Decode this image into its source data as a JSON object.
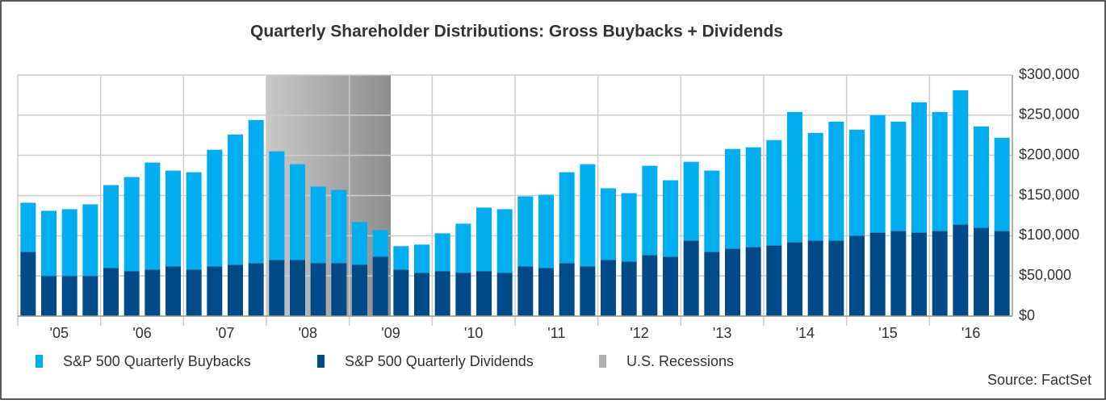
{
  "chart_data": {
    "type": "stacked_bar",
    "title": "Quarterly Shareholder Distributions: Gross Buybacks + Dividends",
    "source": "Source: FactSet",
    "year_labels": [
      "'05",
      "'06",
      "'07",
      "'08",
      "'09",
      "'10",
      "'11",
      "'12",
      "'13",
      "'14",
      "'15",
      "'16"
    ],
    "series": [
      {
        "name": "S&P 500 Quarterly Dividends",
        "color": "#004b87",
        "values": [
          80000,
          50000,
          50000,
          50000,
          60000,
          56000,
          58000,
          62000,
          58000,
          62000,
          64000,
          66000,
          70000,
          70000,
          66000,
          66000,
          64000,
          74000,
          58000,
          54000,
          56000,
          54000,
          56000,
          54000,
          62000,
          60000,
          66000,
          62000,
          70000,
          68000,
          76000,
          74000,
          94000,
          80000,
          84000,
          86000,
          88000,
          92000,
          94000,
          94000,
          100000,
          104000,
          106000,
          104000,
          106000,
          114000,
          110000,
          106000
        ]
      },
      {
        "name": "S&P 500 Quarterly Buybacks",
        "color": "#00aeef",
        "values": [
          61000,
          81000,
          83000,
          89000,
          103000,
          117000,
          133000,
          119000,
          121000,
          145000,
          162000,
          178000,
          135000,
          119000,
          95000,
          91000,
          53000,
          33000,
          29000,
          35000,
          47000,
          61000,
          79000,
          79000,
          87000,
          91000,
          113000,
          127000,
          89000,
          85000,
          111000,
          95000,
          98000,
          101000,
          124000,
          124000,
          131000,
          162000,
          134000,
          148000,
          132000,
          146000,
          136000,
          162000,
          148000,
          167000,
          126000,
          116000
        ]
      }
    ],
    "recession": {
      "name": "U.S. Recessions",
      "color": "#b0b0b0",
      "start": 12,
      "end": 18
    },
    "ylim": [
      0,
      300000
    ],
    "yticks": [
      {
        "value": 0,
        "label": "$0"
      },
      {
        "value": 50000,
        "label": "$50,000"
      },
      {
        "value": 100000,
        "label": "$100,000"
      },
      {
        "value": 150000,
        "label": "$150,000"
      },
      {
        "value": 200000,
        "label": "$200,000"
      },
      {
        "value": 250000,
        "label": "$250,000"
      },
      {
        "value": 300000,
        "label": "$300,000"
      }
    ],
    "grid": true
  }
}
